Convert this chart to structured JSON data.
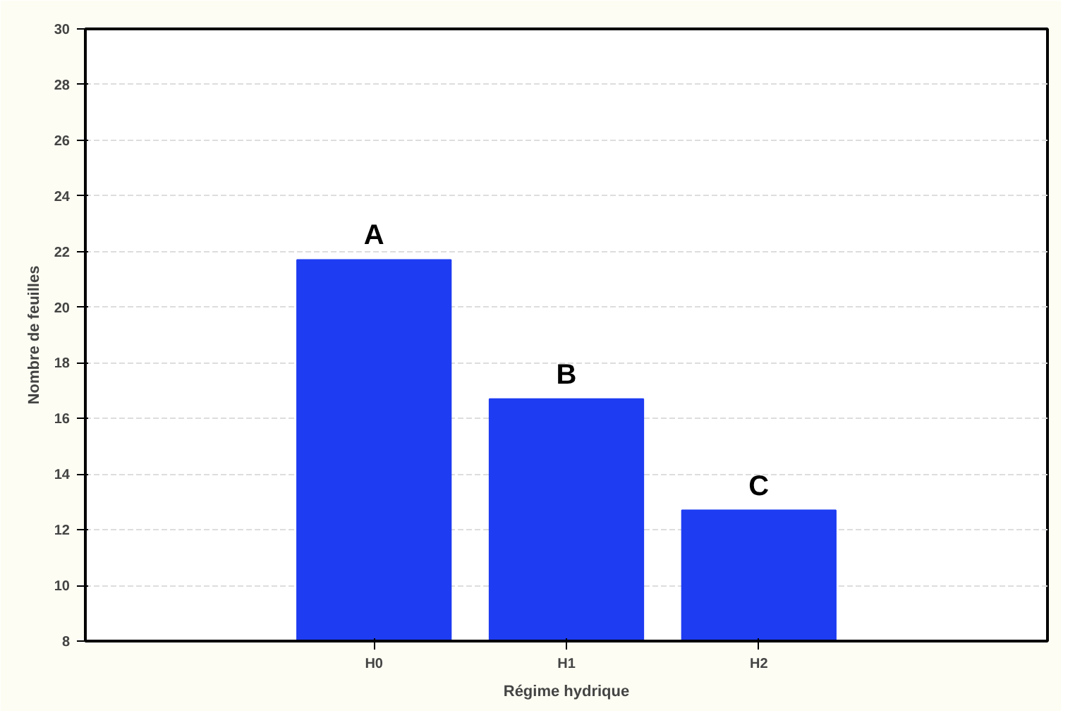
{
  "chart_data": {
    "type": "bar",
    "xlabel": "Régime hydrique",
    "ylabel": "Nombre de feuilles",
    "categories": [
      "H0",
      "H1",
      "H2"
    ],
    "values": [
      21.7,
      16.7,
      12.7
    ],
    "color": "#1e3cf2",
    "ylim": [
      8,
      30
    ],
    "yticks": [
      8,
      10,
      12,
      14,
      16,
      18,
      20,
      22,
      24,
      26,
      28,
      30
    ],
    "grid": "y",
    "annotations": [
      "A",
      "B",
      "C"
    ]
  }
}
